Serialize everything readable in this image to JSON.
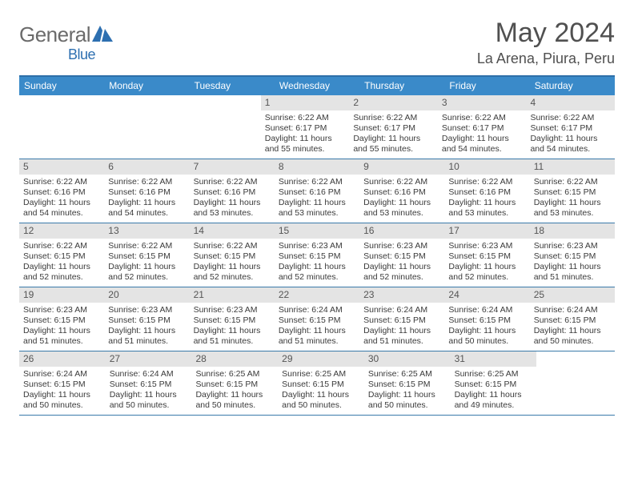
{
  "brand": {
    "name_part1": "General",
    "name_part2": "Blue"
  },
  "title": "May 2024",
  "location": "La Arena, Piura, Peru",
  "colors": {
    "header_bg": "#3a8ac9",
    "border_top": "#2d6fa8",
    "row_border": "#3a7aaa",
    "daynum_bg": "#e4e4e4",
    "text_dark": "#3a3a3a",
    "text_gray": "#505050",
    "logo_gray": "#6b6b6b",
    "logo_blue": "#2d6fb0"
  },
  "weekdays": [
    "Sunday",
    "Monday",
    "Tuesday",
    "Wednesday",
    "Thursday",
    "Friday",
    "Saturday"
  ],
  "weeks": [
    [
      null,
      null,
      null,
      {
        "n": "1",
        "sr": "6:22 AM",
        "ss": "6:17 PM",
        "dl": "11 hours and 55 minutes."
      },
      {
        "n": "2",
        "sr": "6:22 AM",
        "ss": "6:17 PM",
        "dl": "11 hours and 55 minutes."
      },
      {
        "n": "3",
        "sr": "6:22 AM",
        "ss": "6:17 PM",
        "dl": "11 hours and 54 minutes."
      },
      {
        "n": "4",
        "sr": "6:22 AM",
        "ss": "6:17 PM",
        "dl": "11 hours and 54 minutes."
      }
    ],
    [
      {
        "n": "5",
        "sr": "6:22 AM",
        "ss": "6:16 PM",
        "dl": "11 hours and 54 minutes."
      },
      {
        "n": "6",
        "sr": "6:22 AM",
        "ss": "6:16 PM",
        "dl": "11 hours and 54 minutes."
      },
      {
        "n": "7",
        "sr": "6:22 AM",
        "ss": "6:16 PM",
        "dl": "11 hours and 53 minutes."
      },
      {
        "n": "8",
        "sr": "6:22 AM",
        "ss": "6:16 PM",
        "dl": "11 hours and 53 minutes."
      },
      {
        "n": "9",
        "sr": "6:22 AM",
        "ss": "6:16 PM",
        "dl": "11 hours and 53 minutes."
      },
      {
        "n": "10",
        "sr": "6:22 AM",
        "ss": "6:16 PM",
        "dl": "11 hours and 53 minutes."
      },
      {
        "n": "11",
        "sr": "6:22 AM",
        "ss": "6:15 PM",
        "dl": "11 hours and 53 minutes."
      }
    ],
    [
      {
        "n": "12",
        "sr": "6:22 AM",
        "ss": "6:15 PM",
        "dl": "11 hours and 52 minutes."
      },
      {
        "n": "13",
        "sr": "6:22 AM",
        "ss": "6:15 PM",
        "dl": "11 hours and 52 minutes."
      },
      {
        "n": "14",
        "sr": "6:22 AM",
        "ss": "6:15 PM",
        "dl": "11 hours and 52 minutes."
      },
      {
        "n": "15",
        "sr": "6:23 AM",
        "ss": "6:15 PM",
        "dl": "11 hours and 52 minutes."
      },
      {
        "n": "16",
        "sr": "6:23 AM",
        "ss": "6:15 PM",
        "dl": "11 hours and 52 minutes."
      },
      {
        "n": "17",
        "sr": "6:23 AM",
        "ss": "6:15 PM",
        "dl": "11 hours and 52 minutes."
      },
      {
        "n": "18",
        "sr": "6:23 AM",
        "ss": "6:15 PM",
        "dl": "11 hours and 51 minutes."
      }
    ],
    [
      {
        "n": "19",
        "sr": "6:23 AM",
        "ss": "6:15 PM",
        "dl": "11 hours and 51 minutes."
      },
      {
        "n": "20",
        "sr": "6:23 AM",
        "ss": "6:15 PM",
        "dl": "11 hours and 51 minutes."
      },
      {
        "n": "21",
        "sr": "6:23 AM",
        "ss": "6:15 PM",
        "dl": "11 hours and 51 minutes."
      },
      {
        "n": "22",
        "sr": "6:24 AM",
        "ss": "6:15 PM",
        "dl": "11 hours and 51 minutes."
      },
      {
        "n": "23",
        "sr": "6:24 AM",
        "ss": "6:15 PM",
        "dl": "11 hours and 51 minutes."
      },
      {
        "n": "24",
        "sr": "6:24 AM",
        "ss": "6:15 PM",
        "dl": "11 hours and 50 minutes."
      },
      {
        "n": "25",
        "sr": "6:24 AM",
        "ss": "6:15 PM",
        "dl": "11 hours and 50 minutes."
      }
    ],
    [
      {
        "n": "26",
        "sr": "6:24 AM",
        "ss": "6:15 PM",
        "dl": "11 hours and 50 minutes."
      },
      {
        "n": "27",
        "sr": "6:24 AM",
        "ss": "6:15 PM",
        "dl": "11 hours and 50 minutes."
      },
      {
        "n": "28",
        "sr": "6:25 AM",
        "ss": "6:15 PM",
        "dl": "11 hours and 50 minutes."
      },
      {
        "n": "29",
        "sr": "6:25 AM",
        "ss": "6:15 PM",
        "dl": "11 hours and 50 minutes."
      },
      {
        "n": "30",
        "sr": "6:25 AM",
        "ss": "6:15 PM",
        "dl": "11 hours and 50 minutes."
      },
      {
        "n": "31",
        "sr": "6:25 AM",
        "ss": "6:15 PM",
        "dl": "11 hours and 49 minutes."
      },
      null
    ]
  ],
  "labels": {
    "sunrise": "Sunrise:",
    "sunset": "Sunset:",
    "daylight": "Daylight:"
  }
}
